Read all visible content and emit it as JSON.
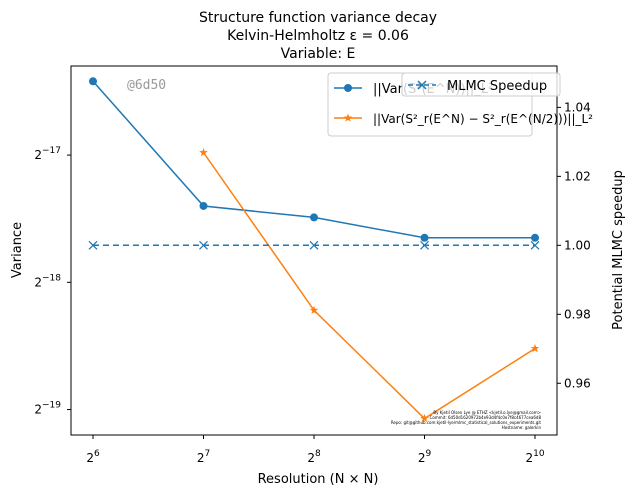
{
  "chart_data": {
    "type": "line",
    "title_lines": [
      "Structure function variance decay",
      "Kelvin-Helmholtz ε = 0.06",
      "Variable: E"
    ],
    "xlabel": "Resolution (N × N)",
    "ylabel_left": "Variance",
    "ylabel_right": "Potential MLMC speedup",
    "x": [
      64,
      128,
      256,
      512,
      1024
    ],
    "x_ticks": [
      {
        "base": "2",
        "exp": "6"
      },
      {
        "base": "2",
        "exp": "7"
      },
      {
        "base": "2",
        "exp": "8"
      },
      {
        "base": "2",
        "exp": "9"
      },
      {
        "base": "2",
        "exp": "10"
      }
    ],
    "y_left_scale": "log2",
    "y_left_ticks": [
      {
        "base": "2",
        "exp": "−17",
        "log2": -17
      },
      {
        "base": "2",
        "exp": "−18",
        "log2": -18
      },
      {
        "base": "2",
        "exp": "−19",
        "log2": -19
      }
    ],
    "y_left_log2_range": [
      -19.2,
      -16.3
    ],
    "y_right_range": [
      0.945,
      1.052
    ],
    "y_right_ticks": [
      "0.96",
      "0.98",
      "1.00",
      "1.02",
      "1.04"
    ],
    "series": [
      {
        "name": "||Var(S²(E^N))||_L²",
        "axis": "left",
        "color": "#1f77b4",
        "marker": "circle",
        "log2_values": [
          -16.42,
          -17.4,
          -17.49,
          -17.65,
          -17.65
        ]
      },
      {
        "name": "||Var(S²_r(E^N) − S²_r(E^(N/2)))||_L²",
        "axis": "left",
        "color": "#ff7f0e",
        "marker": "star",
        "x": [
          128,
          256,
          512,
          1024
        ],
        "log2_values": [
          -16.98,
          -18.22,
          -19.07,
          -18.52
        ]
      },
      {
        "name": "MLMC Speedup",
        "axis": "right",
        "color": "#1f77b4",
        "marker": "x",
        "dashed": true,
        "values": [
          1.0,
          1.0,
          1.0,
          1.0,
          1.0
        ]
      }
    ],
    "legend_left": {
      "label1_main": "||Var(",
      "label1_tail": "",
      "label2_main": "||Var(S",
      "label2_tail": ")||"
    },
    "legend_right": {
      "label": "MLMC Speedup"
    },
    "watermark": "@6d50",
    "footer_lines": [
      "By Kjetil Olsen Lye @ ETHZ <kjetil.o.lye@gmail.com>",
      "Commit: 6d50d1620972b4e93d4f4c0e7f8c4677cea6d8",
      "Repo: git@github.com:kjetil-lye/mlmc_statistical_solutions_experiments.git",
      "Hostname: galerkin"
    ]
  }
}
